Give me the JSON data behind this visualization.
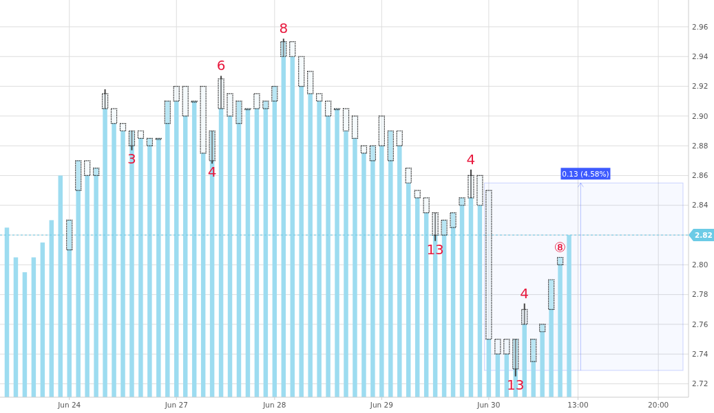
{
  "chart_data": {
    "type": "candlestick",
    "categories": [
      null,
      null,
      null,
      null,
      null,
      null,
      null,
      "Jun 24",
      null,
      null,
      null,
      null,
      null,
      null,
      null,
      null,
      null,
      null,
      null,
      "Jun 27",
      null,
      null,
      null,
      null,
      null,
      null,
      null,
      null,
      null,
      null,
      "Jun 28",
      null,
      null,
      null,
      null,
      null,
      null,
      null,
      null,
      null,
      null,
      null,
      "Jun 29",
      null,
      null,
      null,
      null,
      null,
      null,
      null,
      null,
      null,
      null,
      null,
      "Jun 30",
      null,
      null,
      null,
      null,
      null,
      null,
      null,
      null,
      null,
      "13:00",
      null,
      null,
      null,
      null,
      null,
      null,
      null,
      null,
      "20:00",
      null,
      null,
      null
    ],
    "ohlc": [
      null,
      null,
      null,
      null,
      null,
      null,
      null,
      [
        2.81,
        2.83,
        2.81,
        2.83
      ],
      [
        2.85,
        2.87,
        2.85,
        2.87
      ],
      [
        2.87,
        2.87,
        2.86,
        2.86
      ],
      [
        2.86,
        2.865,
        2.86,
        2.865
      ],
      [
        2.915,
        2.918,
        2.905,
        2.905
      ],
      [
        2.905,
        2.905,
        2.895,
        2.895
      ],
      [
        2.895,
        2.895,
        2.89,
        2.89
      ],
      [
        2.88,
        2.89,
        2.877,
        2.89
      ],
      [
        2.89,
        2.89,
        2.885,
        2.885
      ],
      [
        2.88,
        2.885,
        2.88,
        2.885
      ],
      [
        2.885,
        2.885,
        2.885,
        2.885
      ],
      [
        2.895,
        2.91,
        2.895,
        2.91
      ],
      [
        2.92,
        2.92,
        2.91,
        2.91
      ],
      [
        2.92,
        2.92,
        2.9,
        2.9
      ],
      [
        2.91,
        2.91,
        2.91,
        2.91
      ],
      [
        2.92,
        2.92,
        2.875,
        2.875
      ],
      [
        2.87,
        2.89,
        2.868,
        2.89
      ],
      [
        2.925,
        2.927,
        2.905,
        2.905
      ],
      [
        2.915,
        2.915,
        2.9,
        2.9
      ],
      [
        2.895,
        2.91,
        2.895,
        2.91
      ],
      [
        2.905,
        2.905,
        2.905,
        2.905
      ],
      [
        2.915,
        2.915,
        2.905,
        2.905
      ],
      [
        2.905,
        2.91,
        2.905,
        2.91
      ],
      [
        2.91,
        2.92,
        2.91,
        2.92
      ],
      [
        2.94,
        2.952,
        2.94,
        2.95
      ],
      [
        2.95,
        2.95,
        2.94,
        2.94
      ],
      [
        2.94,
        2.94,
        2.92,
        2.92
      ],
      [
        2.93,
        2.93,
        2.915,
        2.915
      ],
      [
        2.915,
        2.915,
        2.91,
        2.91
      ],
      [
        2.91,
        2.91,
        2.9,
        2.9
      ],
      [
        2.905,
        2.905,
        2.905,
        2.905
      ],
      [
        2.905,
        2.905,
        2.89,
        2.89
      ],
      [
        2.9,
        2.9,
        2.885,
        2.885
      ],
      [
        2.88,
        2.88,
        2.875,
        2.875
      ],
      [
        2.87,
        2.88,
        2.87,
        2.88
      ],
      [
        2.9,
        2.9,
        2.88,
        2.88
      ],
      [
        2.87,
        2.89,
        2.87,
        2.89
      ],
      [
        2.89,
        2.89,
        2.88,
        2.88
      ],
      [
        2.865,
        2.865,
        2.855,
        2.855
      ],
      [
        2.85,
        2.85,
        2.845,
        2.845
      ],
      [
        2.845,
        2.845,
        2.835,
        2.835
      ],
      [
        2.835,
        2.835,
        2.816,
        2.82
      ],
      [
        2.82,
        2.83,
        2.82,
        2.83
      ],
      [
        2.825,
        2.835,
        2.825,
        2.835
      ],
      [
        2.84,
        2.845,
        2.84,
        2.845
      ],
      [
        2.86,
        2.864,
        2.845,
        2.845
      ],
      [
        2.86,
        2.86,
        2.84,
        2.84
      ],
      [
        2.85,
        2.85,
        2.75,
        2.75
      ],
      [
        2.75,
        2.75,
        2.74,
        2.74
      ],
      [
        2.75,
        2.75,
        2.74,
        2.74
      ],
      [
        2.73,
        2.75,
        2.725,
        2.75
      ],
      [
        2.77,
        2.774,
        2.76,
        2.76
      ],
      [
        2.735,
        2.75,
        2.735,
        2.75
      ],
      [
        2.755,
        2.76,
        2.755,
        2.76
      ],
      [
        2.77,
        2.79,
        2.77,
        2.79
      ],
      [
        2.8,
        2.805,
        2.8,
        2.805
      ],
      null,
      null,
      null,
      null,
      null,
      null,
      null,
      null,
      null,
      null,
      null,
      null,
      null,
      null
    ],
    "value_labels": [
      null,
      null,
      null,
      null,
      null,
      null,
      null,
      null,
      null,
      null,
      null,
      null,
      null,
      null,
      "3",
      null,
      null,
      null,
      null,
      null,
      null,
      null,
      null,
      "4",
      "6",
      null,
      null,
      null,
      null,
      null,
      null,
      "8",
      null,
      null,
      null,
      null,
      null,
      null,
      null,
      null,
      null,
      null,
      null,
      null,
      null,
      null,
      null,
      null,
      "13",
      null,
      null,
      null,
      "4",
      null,
      null,
      null,
      null,
      "13",
      "4",
      null,
      null,
      null,
      "⑧",
      null,
      null,
      null,
      null,
      null,
      null,
      null,
      null,
      null,
      null,
      null,
      null,
      null,
      null
    ],
    "series": [
      {
        "type": "bar",
        "color": "#9ddcf0",
        "values": [
          2.825,
          2.805,
          2.795,
          2.805,
          2.815,
          2.83,
          2.86,
          2.83,
          2.87,
          2.86,
          2.865,
          2.905,
          2.895,
          2.89,
          2.89,
          2.885,
          2.885,
          2.885,
          2.91,
          2.91,
          2.9,
          2.91,
          2.875,
          2.89,
          2.905,
          2.9,
          2.91,
          2.905,
          2.905,
          2.91,
          2.92,
          2.95,
          2.94,
          2.92,
          2.915,
          2.91,
          2.9,
          2.905,
          2.89,
          2.885,
          2.875,
          2.88,
          2.88,
          2.89,
          2.88,
          2.855,
          2.845,
          2.835,
          2.82,
          2.83,
          2.835,
          2.845,
          2.845,
          2.84,
          2.75,
          2.74,
          2.74,
          2.75,
          2.76,
          2.75,
          2.76,
          2.79,
          2.805,
          2.82,
          null,
          null,
          null,
          null,
          null,
          null,
          null,
          null,
          null,
          null,
          null,
          null,
          null
        ]
      }
    ],
    "ylim": [
      2.711,
      2.978
    ],
    "yticks": [
      {
        "value": 2.72,
        "label": "2.72"
      },
      {
        "value": 2.74,
        "label": "2.74"
      },
      {
        "value": 2.76,
        "label": "2.76"
      },
      {
        "value": 2.78,
        "label": "2.78"
      },
      {
        "value": 2.8,
        "label": "2.80"
      },
      {
        "value": 2.82,
        "label": null
      },
      {
        "value": 2.84,
        "label": "2.84"
      },
      {
        "value": 2.86,
        "label": "2.86"
      },
      {
        "value": 2.88,
        "label": "2.88"
      },
      {
        "value": 2.9,
        "label": "2.90"
      },
      {
        "value": 2.92,
        "label": "2.92"
      },
      {
        "value": 2.94,
        "label": "2.94"
      },
      {
        "value": 2.96,
        "label": "2.96"
      }
    ],
    "grid": true,
    "ref_lines": [
      {
        "axis": "y",
        "value": 2.82,
        "label": "2.82",
        "color": "#6ccbe6"
      }
    ],
    "bands": [
      {
        "axis": "y",
        "from": 2.729,
        "to": 2.855,
        "label": "0.13 (4.58%)",
        "color": "#3d5afe"
      }
    ]
  }
}
